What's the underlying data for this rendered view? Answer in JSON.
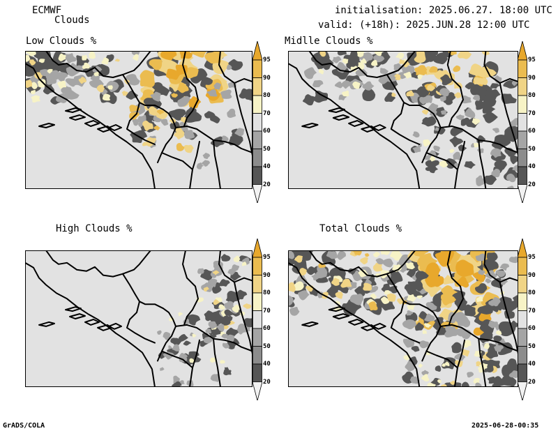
{
  "header": {
    "model": "ECMWF",
    "product": "Clouds",
    "initialisation": "initialisation: 2025.06.27. 18:00 UTC",
    "valid": "valid: (+18h): 2025.JUN.28 12:00 UTC"
  },
  "colorbar": {
    "levels": [
      "95",
      "90",
      "80",
      "70",
      "60",
      "50",
      "40",
      "20"
    ],
    "colors": {
      "over95": "#E8A82C",
      "90_95": "#EBBC50",
      "80_90": "#F0D486",
      "70_80": "#F7F3C6",
      "60_70": "#E2E2E2",
      "50_60": "#A5A5A5",
      "40_50": "#8C8C8C",
      "20_40": "#565656",
      "under20": "#F2F2F2"
    }
  },
  "map_colors": {
    "background": "#E2E2E2",
    "frame": "#000000",
    "border": "#000000"
  },
  "panels": [
    {
      "id": "low",
      "title": "Low Clouds %"
    },
    {
      "id": "middle",
      "title": "Midlle Clouds %"
    },
    {
      "id": "high",
      "title": "High Clouds %"
    },
    {
      "id": "total",
      "title": "Total Clouds %"
    }
  ],
  "footer": {
    "left": "GrADS/COLA",
    "right": "2025-06-28-00:35"
  }
}
